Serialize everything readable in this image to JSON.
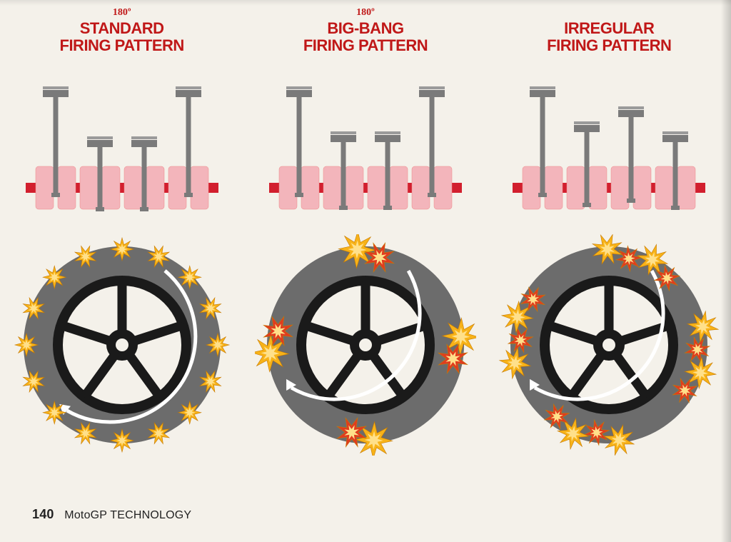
{
  "page": {
    "page_number": "140",
    "source_label": "MotoGP TECHNOLOGY",
    "background_color": "#f4f1ea",
    "title_color": "#c01818"
  },
  "patterns": [
    {
      "degree": "180º",
      "title_line1": "STANDARD",
      "title_line2": "FIRING PATTERN",
      "piston_heights": [
        100,
        50,
        50,
        100
      ],
      "piston_bottoms": [
        0,
        50,
        50,
        0
      ],
      "crank": {
        "lobe_fill": "#f3b5bb",
        "shaft_fill": "#d21f2e",
        "piston_fill": "#7a7a7a"
      },
      "wheel": {
        "tire_fill": "#6c6c6c",
        "rim_fill": "#f4f1ea",
        "spoke_fill": "#1a1a1a",
        "arrow_color": "#ffffff",
        "arrow_arc_deg": [
          300,
          130
        ],
        "star_groups": [
          {
            "angle": -90,
            "sizes": [
              16
            ]
          },
          {
            "angle": -67.5,
            "sizes": [
              16
            ]
          },
          {
            "angle": -45,
            "sizes": [
              16
            ]
          },
          {
            "angle": -22.5,
            "sizes": [
              16
            ]
          },
          {
            "angle": 0,
            "sizes": [
              16
            ]
          },
          {
            "angle": 22.5,
            "sizes": [
              16
            ]
          },
          {
            "angle": 45,
            "sizes": [
              16
            ]
          },
          {
            "angle": 67.5,
            "sizes": [
              16
            ]
          },
          {
            "angle": 90,
            "sizes": [
              16
            ]
          },
          {
            "angle": 112.5,
            "sizes": [
              16
            ]
          },
          {
            "angle": 135,
            "sizes": [
              16
            ]
          },
          {
            "angle": 157.5,
            "sizes": [
              16
            ]
          },
          {
            "angle": 180,
            "sizes": [
              16
            ]
          },
          {
            "angle": 202.5,
            "sizes": [
              16
            ]
          },
          {
            "angle": 225,
            "sizes": [
              16
            ]
          },
          {
            "angle": 247.5,
            "sizes": [
              16
            ]
          }
        ],
        "star_fill_main": "#f7b218",
        "star_fill_alt": "#e03b1f"
      }
    },
    {
      "degree": "180º",
      "title_line1": "BIG-BANG",
      "title_line2": "FIRING PATTERN",
      "piston_heights": [
        100,
        55,
        55,
        100
      ],
      "piston_bottoms": [
        0,
        45,
        45,
        0
      ],
      "crank": {
        "lobe_fill": "#f3b5bb",
        "shaft_fill": "#d21f2e",
        "piston_fill": "#7a7a7a"
      },
      "wheel": {
        "tire_fill": "#6c6c6c",
        "rim_fill": "#f4f1ea",
        "spoke_fill": "#1a1a1a",
        "arrow_color": "#ffffff",
        "arrow_arc_deg": [
          300,
          150
        ],
        "star_groups": [
          {
            "angle": -88,
            "sizes": [
              26,
              22
            ]
          },
          {
            "angle": 2,
            "sizes": [
              26,
              22
            ]
          },
          {
            "angle": 92,
            "sizes": [
              26,
              22
            ]
          },
          {
            "angle": 182,
            "sizes": [
              26,
              22
            ]
          }
        ],
        "star_fill_main": "#f7b218",
        "star_fill_alt": "#e03b1f"
      }
    },
    {
      "degree": "",
      "title_line1": "IRREGULAR",
      "title_line2": "FIRING PATTERN",
      "piston_heights": [
        100,
        65,
        80,
        55
      ],
      "piston_bottoms": [
        0,
        35,
        20,
        45
      ],
      "crank": {
        "lobe_fill": "#f3b5bb",
        "shaft_fill": "#d21f2e",
        "piston_fill": "#7a7a7a"
      },
      "wheel": {
        "tire_fill": "#6c6c6c",
        "rim_fill": "#f4f1ea",
        "spoke_fill": "#1a1a1a",
        "arrow_color": "#ffffff",
        "arrow_arc_deg": [
          300,
          150
        ],
        "star_groups": [
          {
            "angle": -70,
            "sizes": [
              22,
              18,
              22,
              18
            ]
          },
          {
            "angle": 10,
            "sizes": [
              22,
              18,
              22,
              18
            ]
          },
          {
            "angle": 105,
            "sizes": [
              22,
              18,
              22,
              18
            ]
          },
          {
            "angle": 190,
            "sizes": [
              22,
              18,
              22,
              18
            ]
          }
        ],
        "star_fill_main": "#f7b218",
        "star_fill_alt": "#e03b1f"
      }
    }
  ]
}
